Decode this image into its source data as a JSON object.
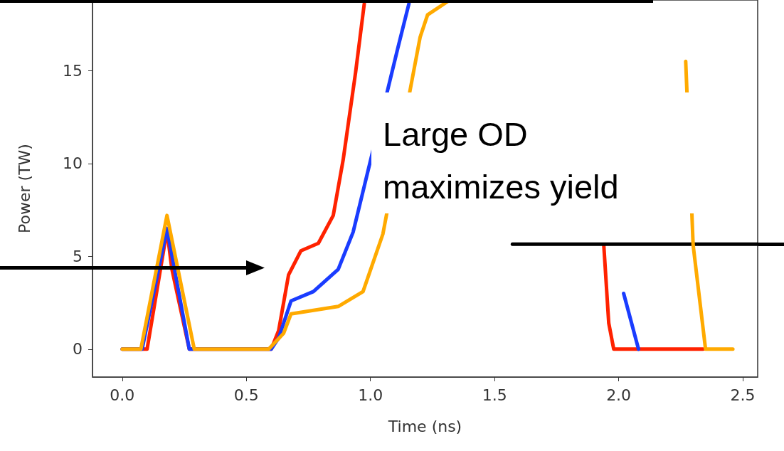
{
  "chart_data": {
    "type": "line",
    "xlabel": "Time (ns)",
    "ylabel": "Power (TW)",
    "xlim": [
      -0.12,
      2.56
    ],
    "ylim": [
      -1.5,
      18.8
    ],
    "xticks": [
      {
        "value": 0,
        "label": "0.0"
      },
      {
        "value": 0.5,
        "label": "0.5"
      },
      {
        "value": 1,
        "label": "1.0"
      },
      {
        "value": 1.5,
        "label": "1.5"
      },
      {
        "value": 2,
        "label": "2.0"
      },
      {
        "value": 2.5,
        "label": "2.5"
      }
    ],
    "yticks": [
      0,
      5,
      10,
      15
    ],
    "grid": false,
    "marker": "none",
    "line_style": "solid",
    "annotations": [
      "Large OD\nmaximizes yield"
    ],
    "series": [
      {
        "color": "#ff2200",
        "x": [
          0,
          0.1,
          0.18,
          0.2,
          0.27,
          0.6,
          0.63,
          0.67,
          0.72,
          0.79,
          0.85,
          0.89,
          0.94,
          0.975,
          1.9,
          1.94,
          1.96,
          1.98,
          2.34
        ],
        "values": [
          0,
          0,
          6.4,
          4.3,
          0,
          0,
          1,
          4,
          5.3,
          5.7,
          7.2,
          10.2,
          14.9,
          18.6,
          null,
          5.6,
          1.4,
          0,
          0
        ]
      },
      {
        "color": "#1a3cff",
        "x": [
          0,
          0.08,
          0.18,
          0.27,
          0.6,
          0.63,
          0.68,
          0.77,
          0.87,
          0.93,
          1.11,
          1.155,
          1.94,
          2.02,
          2.08
        ],
        "values": [
          0,
          0,
          6.5,
          0,
          0,
          0.6,
          2.6,
          3.1,
          4.3,
          6.3,
          16.2,
          18.6,
          null,
          3,
          0
        ]
      },
      {
        "color": "#000000",
        "x": [
          1.572,
          2.56
        ],
        "values": [
          5.65,
          5.65
        ]
      },
      {
        "color": "#ffaa00",
        "x": [
          0,
          0.075,
          0.18,
          0.29,
          0.59,
          0.65,
          0.68,
          0.87,
          0.97,
          1.05,
          1.2,
          1.23,
          1.32,
          2.21,
          2.27,
          2.3,
          2.35,
          2.46
        ],
        "values": [
          0,
          0,
          7.2,
          0,
          0,
          0.85,
          1.9,
          2.3,
          3.1,
          6.2,
          16.8,
          18,
          18.8,
          null,
          15.5,
          5.6,
          0,
          0
        ]
      }
    ]
  }
}
